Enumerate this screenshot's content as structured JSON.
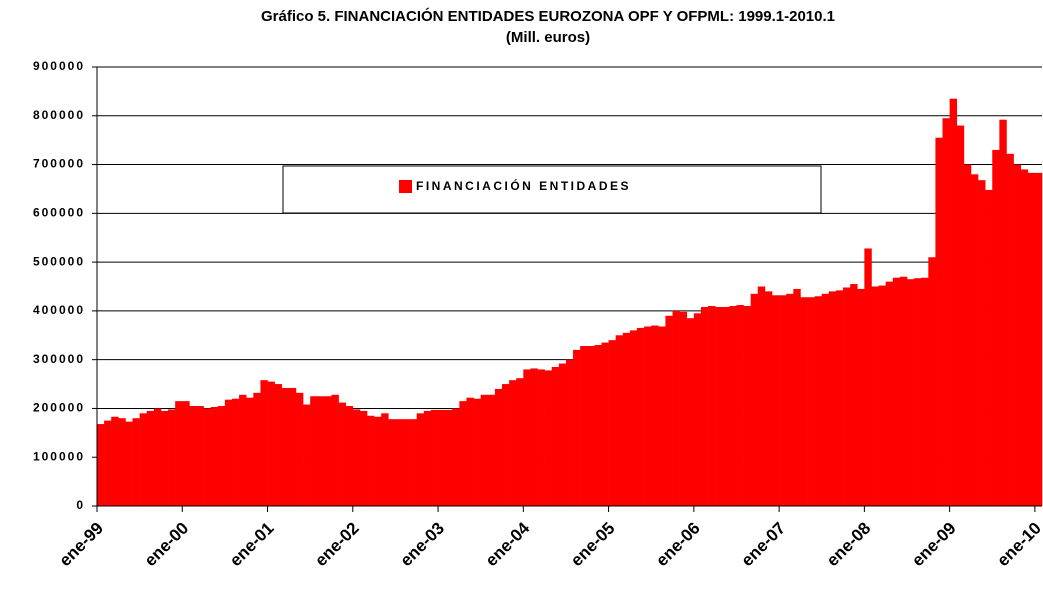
{
  "chart_data": {
    "type": "bar",
    "title": "Gráfico 5. FINANCIACIÓN ENTIDADES EUROZONA OPF Y OFPML: 1999.1-2010.1",
    "subtitle": "(Mill. euros)",
    "categories": [
      "ene-99",
      null,
      null,
      null,
      null,
      null,
      null,
      null,
      null,
      null,
      null,
      null,
      "ene-00",
      null,
      null,
      null,
      null,
      null,
      null,
      null,
      null,
      null,
      null,
      null,
      "ene-01",
      null,
      null,
      null,
      null,
      null,
      null,
      null,
      null,
      null,
      null,
      null,
      "ene-02",
      null,
      null,
      null,
      null,
      null,
      null,
      null,
      null,
      null,
      null,
      null,
      "ene-03",
      null,
      null,
      null,
      null,
      null,
      null,
      null,
      null,
      null,
      null,
      null,
      "ene-04",
      null,
      null,
      null,
      null,
      null,
      null,
      null,
      null,
      null,
      null,
      null,
      "ene-05",
      null,
      null,
      null,
      null,
      null,
      null,
      null,
      null,
      null,
      null,
      null,
      "ene-06",
      null,
      null,
      null,
      null,
      null,
      null,
      null,
      null,
      null,
      null,
      null,
      "ene-07",
      null,
      null,
      null,
      null,
      null,
      null,
      null,
      null,
      null,
      null,
      null,
      "ene-08",
      null,
      null,
      null,
      null,
      null,
      null,
      null,
      null,
      null,
      null,
      null,
      "ene-09",
      null,
      null,
      null,
      null,
      null,
      null,
      null,
      null,
      null,
      null,
      null,
      "ene-10"
    ],
    "series": [
      {
        "name": "FINANCIACIÓN ENTIDADES",
        "color": "#ff0000",
        "values": [
          168000,
          175000,
          183000,
          180000,
          173000,
          180000,
          190000,
          195000,
          200000,
          195000,
          198000,
          215000,
          215000,
          205000,
          205000,
          200000,
          203000,
          205000,
          218000,
          220000,
          228000,
          222000,
          232000,
          258000,
          255000,
          250000,
          242000,
          242000,
          232000,
          208000,
          225000,
          225000,
          225000,
          228000,
          212000,
          205000,
          198000,
          195000,
          185000,
          183000,
          190000,
          178000,
          178000,
          178000,
          178000,
          190000,
          195000,
          197000,
          197000,
          197000,
          200000,
          215000,
          222000,
          220000,
          228000,
          228000,
          240000,
          250000,
          258000,
          262000,
          280000,
          282000,
          280000,
          278000,
          285000,
          292000,
          300000,
          320000,
          328000,
          328000,
          330000,
          335000,
          340000,
          350000,
          355000,
          360000,
          365000,
          368000,
          370000,
          368000,
          390000,
          400000,
          398000,
          385000,
          395000,
          408000,
          410000,
          408000,
          408000,
          410000,
          412000,
          410000,
          435000,
          450000,
          440000,
          432000,
          432000,
          435000,
          445000,
          428000,
          428000,
          430000,
          435000,
          440000,
          442000,
          448000,
          455000,
          445000,
          528000,
          450000,
          452000,
          460000,
          468000,
          470000,
          465000,
          467000,
          468000,
          510000,
          755000,
          795000,
          835000,
          780000,
          700000,
          680000,
          668000,
          648000,
          730000,
          792000,
          722000,
          700000,
          690000,
          683000,
          683000
        ]
      }
    ],
    "ylim": [
      0,
      900000
    ],
    "yticks": [
      0,
      100000,
      200000,
      300000,
      400000,
      500000,
      600000,
      700000,
      800000,
      900000
    ],
    "grid": true
  }
}
